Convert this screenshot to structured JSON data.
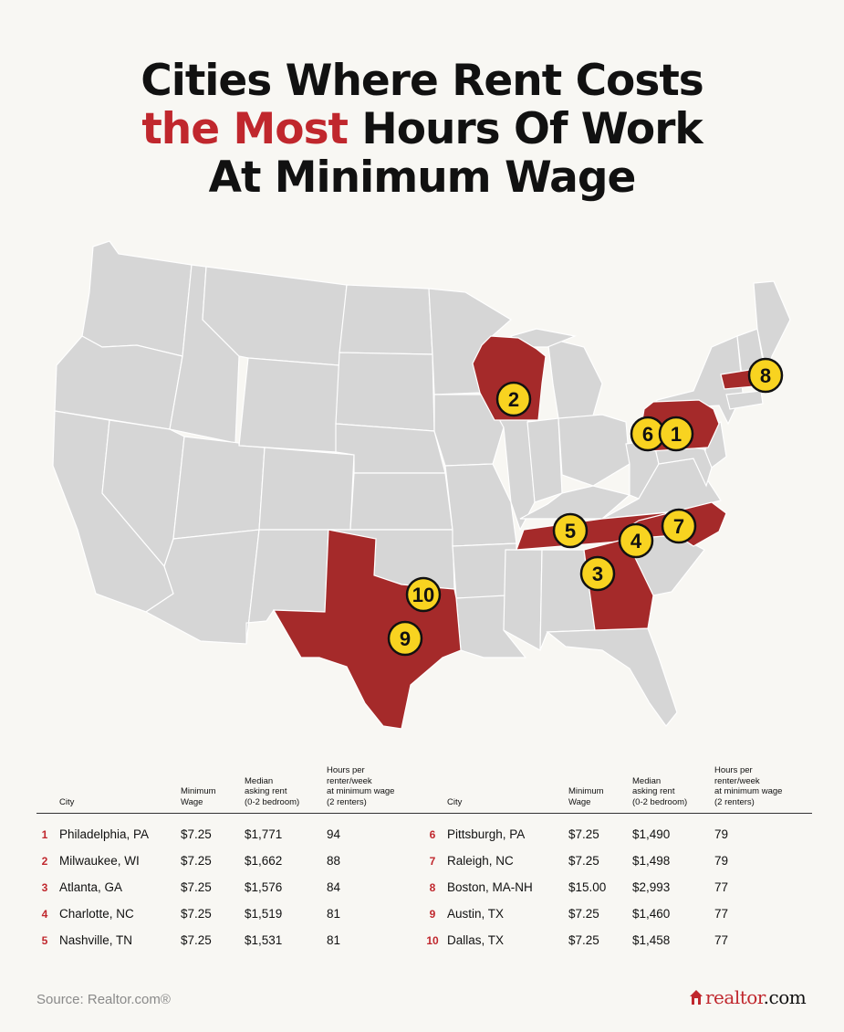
{
  "title": {
    "line1": "Cities Where Rent Costs",
    "line2_accent": "the Most",
    "line2_rest": "Hours Of Work",
    "line3": "At Minimum Wage"
  },
  "colors": {
    "accent": "#c0272d",
    "highlight_state": "#a52a2a",
    "base_state": "#d6d6d6",
    "marker_fill": "#f8d320",
    "background": "#f8f7f3"
  },
  "map": {
    "highlighted_states": [
      "Wisconsin",
      "Pennsylvania",
      "Massachusetts",
      "Tennessee",
      "North Carolina",
      "Georgia",
      "Texas"
    ],
    "markers": [
      {
        "label": "1",
        "city": "Philadelphia, PA"
      },
      {
        "label": "2",
        "city": "Milwaukee, WI"
      },
      {
        "label": "3",
        "city": "Atlanta, GA"
      },
      {
        "label": "4",
        "city": "Charlotte, NC"
      },
      {
        "label": "5",
        "city": "Nashville, TN"
      },
      {
        "label": "6",
        "city": "Pittsburgh, PA"
      },
      {
        "label": "7",
        "city": "Raleigh, NC"
      },
      {
        "label": "8",
        "city": "Boston, MA-NH"
      },
      {
        "label": "9",
        "city": "Austin, TX"
      },
      {
        "label": "10",
        "city": "Dallas, TX"
      }
    ]
  },
  "table": {
    "headers": {
      "city": "City",
      "wage": "Minimum\nWage",
      "rent": "Median\nasking rent\n(0-2 bedroom)",
      "hours": "Hours per\nrenter/week\nat minimum wage\n(2 renters)"
    },
    "rows": [
      {
        "rank": "1",
        "city": "Philadelphia, PA",
        "wage": "$7.25",
        "rent": "$1,771",
        "hours": "94"
      },
      {
        "rank": "2",
        "city": "Milwaukee, WI",
        "wage": "$7.25",
        "rent": "$1,662",
        "hours": "88"
      },
      {
        "rank": "3",
        "city": "Atlanta, GA",
        "wage": "$7.25",
        "rent": "$1,576",
        "hours": "84"
      },
      {
        "rank": "4",
        "city": "Charlotte, NC",
        "wage": "$7.25",
        "rent": "$1,519",
        "hours": "81"
      },
      {
        "rank": "5",
        "city": "Nashville, TN",
        "wage": "$7.25",
        "rent": "$1,531",
        "hours": "81"
      },
      {
        "rank": "6",
        "city": "Pittsburgh, PA",
        "wage": "$7.25",
        "rent": "$1,490",
        "hours": "79"
      },
      {
        "rank": "7",
        "city": "Raleigh, NC",
        "wage": "$7.25",
        "rent": "$1,498",
        "hours": "79"
      },
      {
        "rank": "8",
        "city": "Boston, MA-NH",
        "wage": "$15.00",
        "rent": "$2,993",
        "hours": "77"
      },
      {
        "rank": "9",
        "city": "Austin, TX",
        "wage": "$7.25",
        "rent": "$1,460",
        "hours": "77"
      },
      {
        "rank": "10",
        "city": "Dallas, TX",
        "wage": "$7.25",
        "rent": "$1,458",
        "hours": "77"
      }
    ]
  },
  "footer": {
    "source": "Source: Realtor.com®",
    "logo_main": "realtor",
    "logo_tld": ".com",
    "logo_icon": "house-icon"
  }
}
